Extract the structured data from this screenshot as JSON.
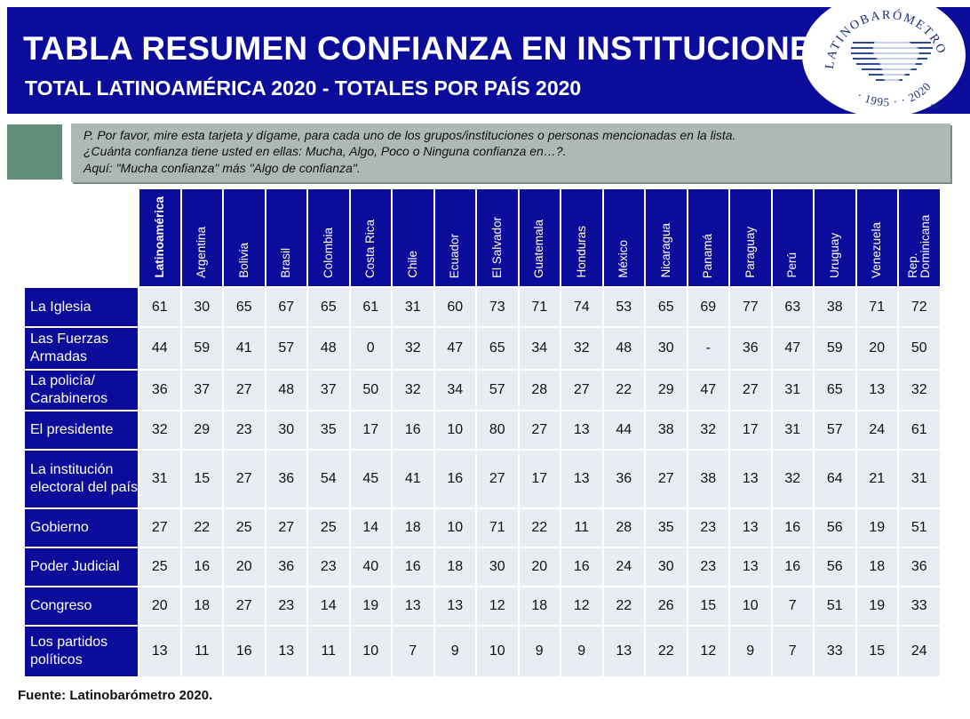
{
  "header": {
    "title": "TABLA RESUMEN CONFIANZA EN INSTITUCIONES",
    "subtitle": "TOTAL LATINOAMÉRICA 2020 - TOTALES POR PAÍS 2020"
  },
  "logo": {
    "name_text": "LATINOBARÓMETRO",
    "year_left": "1995",
    "year_right": "2020",
    "mark": "MR"
  },
  "question": {
    "line1": "P. Por favor, mire esta tarjeta y dígame, para cada uno de los grupos/instituciones o personas mencionadas en la lista.",
    "line2": "¿Cuánta confianza tiene usted en ellas: Mucha, Algo, Poco o Ninguna confianza en…?.",
    "line3": "Aquí: \"Mucha confianza\" más \"Algo de confianza\"."
  },
  "table": {
    "columns": [
      "Latinoamérica",
      "Argentina",
      "Bolivia",
      "Brasil",
      "Colombia",
      "Costa Rica",
      "Chile",
      "Ecuador",
      "El Salvador",
      "Guatemala",
      "Honduras",
      "México",
      "Nicaragua",
      "Panamá",
      "Paraguay",
      "Perú",
      "Uruguay",
      "Venezuela",
      "Rep. Dominicana"
    ],
    "rows": [
      {
        "label": "La Iglesia",
        "values": [
          "61",
          "30",
          "65",
          "67",
          "65",
          "61",
          "31",
          "60",
          "73",
          "71",
          "74",
          "53",
          "65",
          "69",
          "77",
          "63",
          "38",
          "71",
          "72"
        ]
      },
      {
        "label": "Las Fuerzas Armadas",
        "values": [
          "44",
          "59",
          "41",
          "57",
          "48",
          "0",
          "32",
          "47",
          "65",
          "34",
          "32",
          "48",
          "30",
          "-",
          "36",
          "47",
          "59",
          "20",
          "50"
        ]
      },
      {
        "label": "La policía/ Carabineros",
        "values": [
          "36",
          "37",
          "27",
          "48",
          "37",
          "50",
          "32",
          "34",
          "57",
          "28",
          "27",
          "22",
          "29",
          "47",
          "27",
          "31",
          "65",
          "13",
          "32"
        ]
      },
      {
        "label": "El presidente",
        "values": [
          "32",
          "29",
          "23",
          "30",
          "35",
          "17",
          "16",
          "10",
          "80",
          "27",
          "13",
          "44",
          "38",
          "32",
          "17",
          "31",
          "57",
          "24",
          "61"
        ]
      },
      {
        "label": "La institución electoral del país",
        "values": [
          "31",
          "15",
          "27",
          "36",
          "54",
          "45",
          "41",
          "16",
          "27",
          "17",
          "13",
          "36",
          "27",
          "38",
          "13",
          "32",
          "64",
          "21",
          "31"
        ]
      },
      {
        "label": "Gobierno",
        "values": [
          "27",
          "22",
          "25",
          "27",
          "25",
          "14",
          "18",
          "10",
          "71",
          "22",
          "11",
          "28",
          "35",
          "23",
          "13",
          "16",
          "56",
          "19",
          "51"
        ]
      },
      {
        "label": "Poder Judicial",
        "values": [
          "25",
          "16",
          "20",
          "36",
          "23",
          "40",
          "16",
          "18",
          "30",
          "20",
          "16",
          "24",
          "30",
          "23",
          "13",
          "16",
          "56",
          "18",
          "36"
        ]
      },
      {
        "label": "Congreso",
        "values": [
          "20",
          "18",
          "27",
          "23",
          "14",
          "19",
          "13",
          "13",
          "12",
          "18",
          "12",
          "22",
          "26",
          "15",
          "10",
          "7",
          "51",
          "19",
          "33"
        ]
      },
      {
        "label": "Los partidos políticos",
        "values": [
          "13",
          "11",
          "16",
          "13",
          "11",
          "10",
          "7",
          "9",
          "10",
          "9",
          "9",
          "13",
          "22",
          "12",
          "9",
          "7",
          "33",
          "15",
          "24"
        ]
      }
    ]
  },
  "footer": {
    "source": "Fuente: Latinobarómetro 2020."
  }
}
